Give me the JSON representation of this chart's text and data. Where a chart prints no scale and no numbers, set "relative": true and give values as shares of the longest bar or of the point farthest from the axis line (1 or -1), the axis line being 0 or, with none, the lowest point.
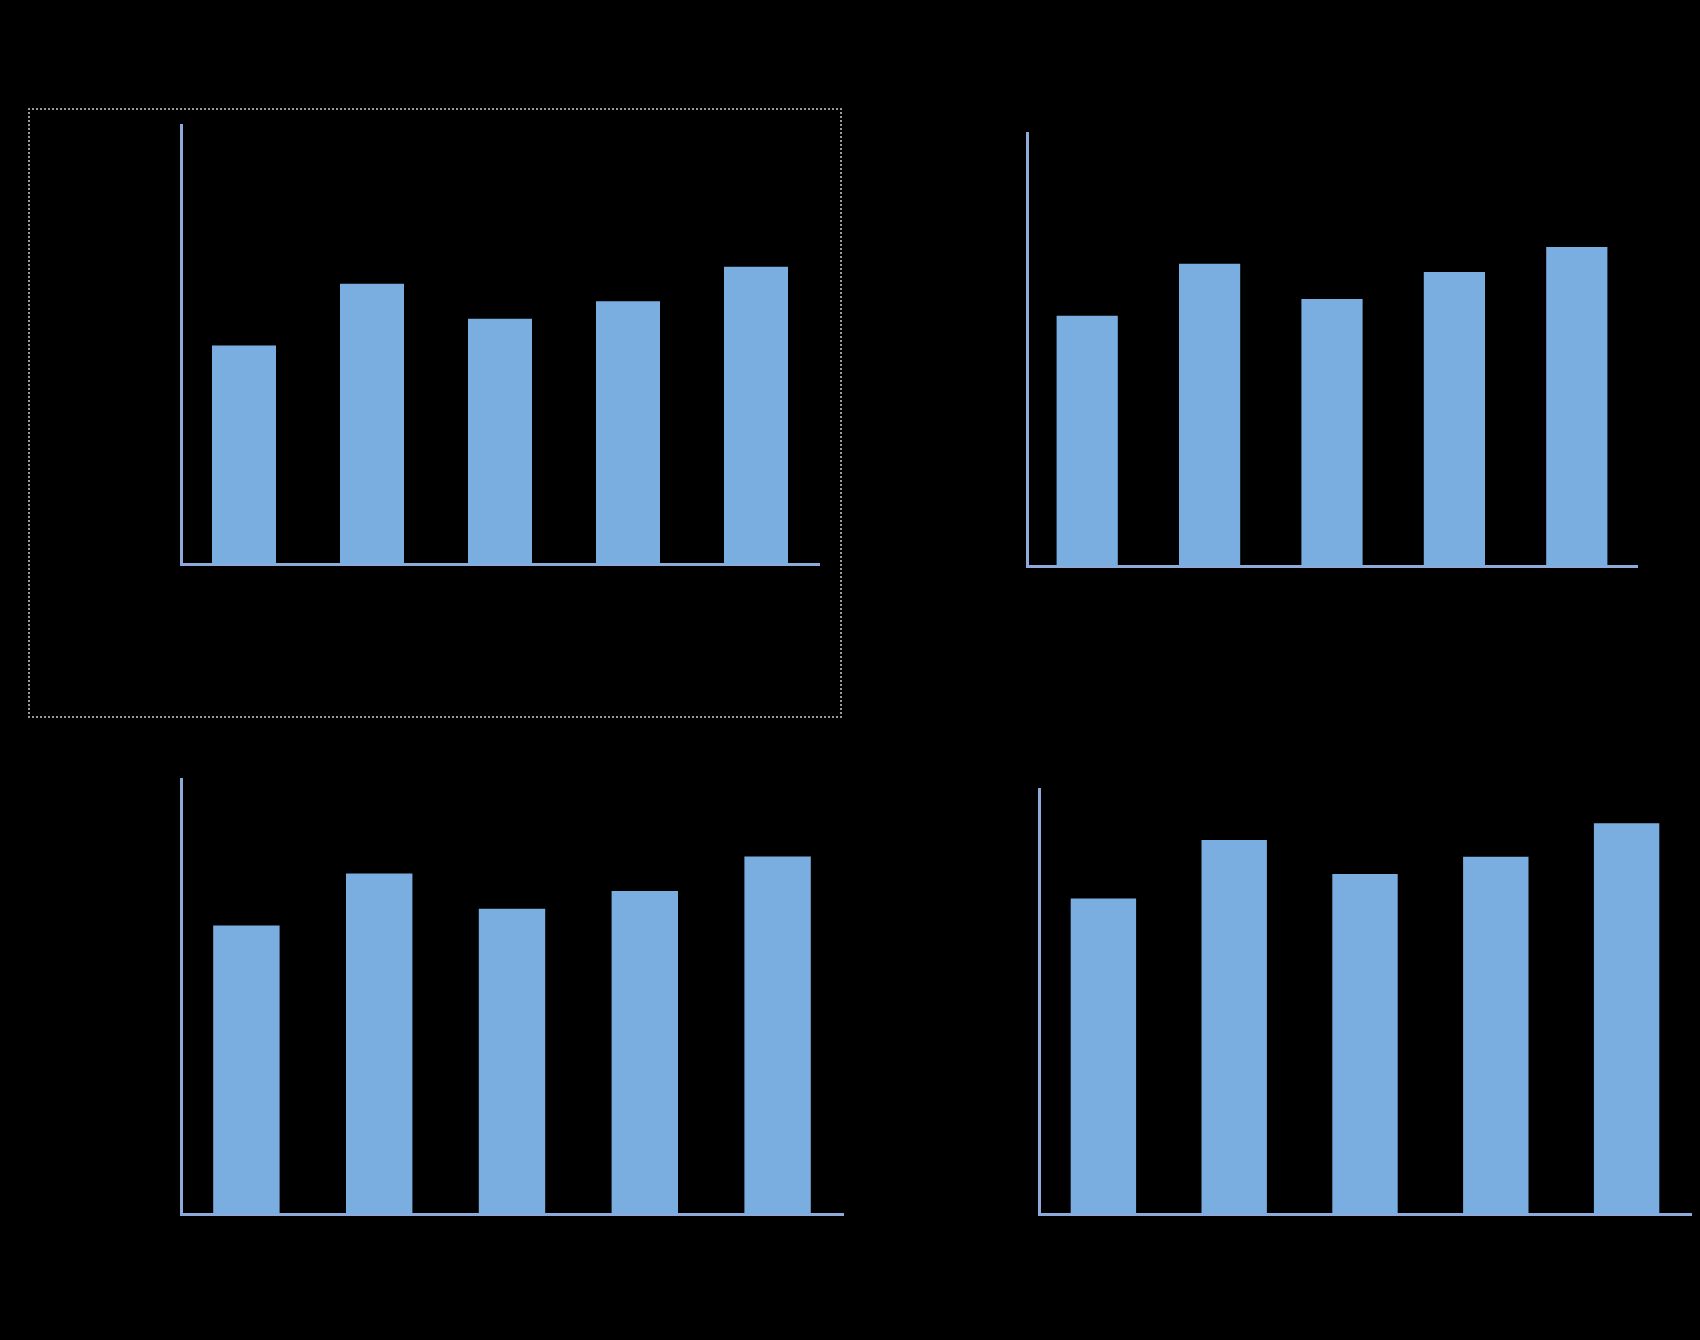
{
  "chart_data": [
    {
      "type": "bar",
      "relative": true,
      "categories": [
        null,
        null,
        null,
        null,
        null
      ],
      "color": "#7aaee0",
      "values": [
        0.735,
        0.943,
        0.825,
        0.884,
        1
      ]
    },
    {
      "type": "bar",
      "relative": true,
      "categories": [
        null,
        null,
        null,
        null,
        null
      ],
      "color": "#7aaee0",
      "values": [
        0.784,
        0.947,
        0.837,
        0.921,
        1
      ]
    },
    {
      "type": "bar",
      "relative": true,
      "categories": [
        null,
        null,
        null,
        null,
        null
      ],
      "color": "#7aaee0",
      "values": [
        0.807,
        0.953,
        0.854,
        0.904,
        1
      ]
    },
    {
      "type": "bar",
      "relative": true,
      "categories": [
        null,
        null,
        null,
        null,
        null
      ],
      "color": "#7aaee0",
      "values": [
        0.807,
        0.957,
        0.87,
        0.914,
        1
      ]
    }
  ]
}
